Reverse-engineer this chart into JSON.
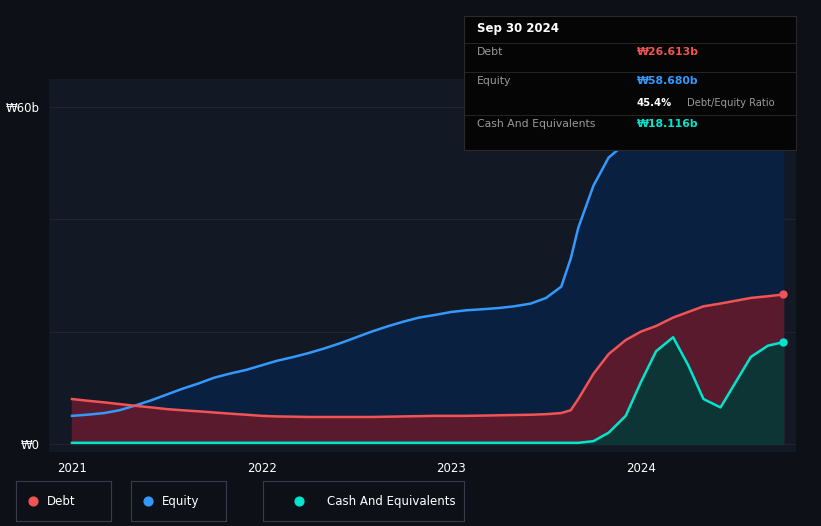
{
  "background_color": "#0d1117",
  "plot_bg_color": "#131825",
  "ylabel_60b": "₩60b",
  "ylabel_0": "₩0",
  "x_ticks": [
    2021,
    2022,
    2023,
    2024
  ],
  "x_min": 2020.88,
  "x_max": 2024.82,
  "y_min": -1.5,
  "y_max": 65,
  "debt_color": "#f05454",
  "equity_color": "#3399ff",
  "cash_color": "#00e5cc",
  "debt_fill_color": "#5a1a2e",
  "equity_fill_color": "#0a2040",
  "cash_fill_color": "#0d3535",
  "tooltip_bg": "#050505",
  "tooltip_border": "#2a2a2a",
  "tooltip_title": "Sep 30 2024",
  "tooltip_debt_label": "Debt",
  "tooltip_debt_value": "₩26.613b",
  "tooltip_equity_label": "Equity",
  "tooltip_equity_value": "₩58.680b",
  "tooltip_ratio": "45.4%",
  "tooltip_ratio_label": "Debt/Equity Ratio",
  "tooltip_cash_label": "Cash And Equivalents",
  "tooltip_cash_value": "₩18.116b",
  "legend_debt": "Debt",
  "legend_equity": "Equity",
  "legend_cash": "Cash And Equivalents",
  "x_data": [
    2021.0,
    2021.08,
    2021.17,
    2021.25,
    2021.33,
    2021.42,
    2021.5,
    2021.58,
    2021.67,
    2021.75,
    2021.83,
    2021.92,
    2022.0,
    2022.08,
    2022.17,
    2022.25,
    2022.33,
    2022.42,
    2022.5,
    2022.58,
    2022.67,
    2022.75,
    2022.83,
    2022.92,
    2023.0,
    2023.08,
    2023.17,
    2023.25,
    2023.33,
    2023.42,
    2023.5,
    2023.58,
    2023.63,
    2023.67,
    2023.75,
    2023.83,
    2023.92,
    2024.0,
    2024.08,
    2024.17,
    2024.25,
    2024.33,
    2024.42,
    2024.5,
    2024.58,
    2024.67,
    2024.75
  ],
  "equity_data": [
    5.0,
    5.2,
    5.5,
    6.0,
    6.8,
    7.8,
    8.8,
    9.8,
    10.8,
    11.8,
    12.5,
    13.2,
    14.0,
    14.8,
    15.5,
    16.2,
    17.0,
    18.0,
    19.0,
    20.0,
    21.0,
    21.8,
    22.5,
    23.0,
    23.5,
    23.8,
    24.0,
    24.2,
    24.5,
    25.0,
    26.0,
    28.0,
    33.0,
    38.5,
    46.0,
    51.0,
    53.5,
    55.0,
    56.0,
    57.0,
    57.5,
    57.8,
    58.0,
    58.2,
    58.4,
    58.5,
    58.68
  ],
  "debt_data": [
    8.0,
    7.7,
    7.4,
    7.1,
    6.8,
    6.5,
    6.2,
    6.0,
    5.8,
    5.6,
    5.4,
    5.2,
    5.0,
    4.9,
    4.85,
    4.8,
    4.8,
    4.8,
    4.8,
    4.8,
    4.85,
    4.9,
    4.95,
    5.0,
    5.0,
    5.0,
    5.05,
    5.1,
    5.15,
    5.2,
    5.3,
    5.5,
    6.0,
    8.0,
    12.5,
    16.0,
    18.5,
    20.0,
    21.0,
    22.5,
    23.5,
    24.5,
    25.0,
    25.5,
    26.0,
    26.3,
    26.613
  ],
  "cash_data": [
    0.2,
    0.2,
    0.2,
    0.2,
    0.2,
    0.2,
    0.2,
    0.2,
    0.2,
    0.2,
    0.2,
    0.2,
    0.2,
    0.2,
    0.2,
    0.2,
    0.2,
    0.2,
    0.2,
    0.2,
    0.2,
    0.2,
    0.2,
    0.2,
    0.2,
    0.2,
    0.2,
    0.2,
    0.2,
    0.2,
    0.2,
    0.2,
    0.2,
    0.2,
    0.5,
    2.0,
    5.0,
    11.0,
    16.5,
    19.0,
    14.0,
    8.0,
    6.5,
    11.0,
    15.5,
    17.5,
    18.116
  ]
}
